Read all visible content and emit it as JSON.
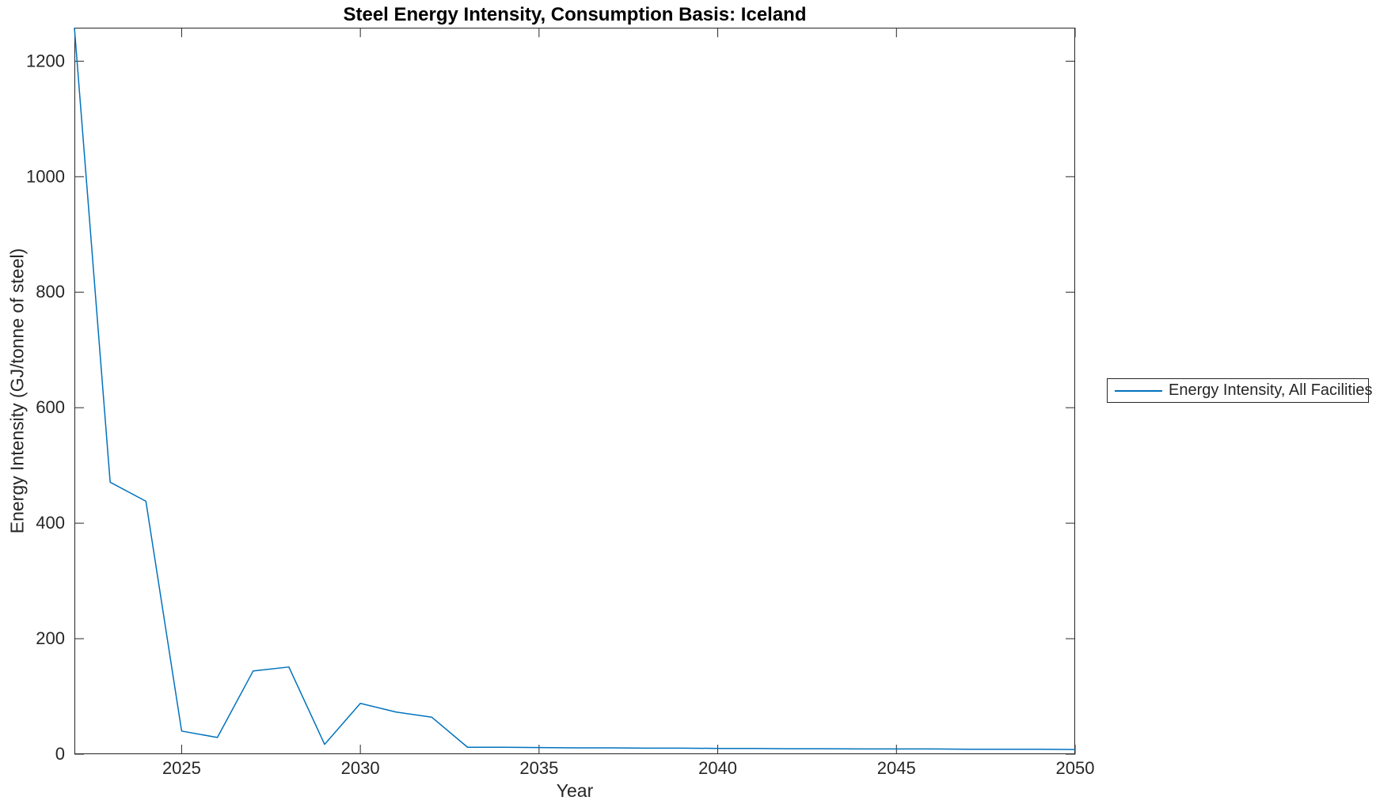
{
  "title": "Steel Energy Intensity, Consumption Basis: Iceland",
  "axes": {
    "xlabel": "Year",
    "ylabel": "Energy Intensity (GJ/tonne of steel)"
  },
  "legend": {
    "entries": [
      {
        "label": "Energy Intensity, All Facilities",
        "color": "#0072BD"
      }
    ]
  },
  "colors": {
    "line": "#0072BD",
    "axis": "#262626",
    "tick_text": "#262626",
    "title_text": "#000000",
    "background": "#ffffff"
  },
  "chart_data": {
    "type": "line",
    "title": "Steel Energy Intensity, Consumption Basis: Iceland",
    "xlabel": "Year",
    "ylabel": "Energy Intensity (GJ/tonne of steel)",
    "x": [
      2022,
      2023,
      2024,
      2025,
      2026,
      2027,
      2028,
      2029,
      2030,
      2031,
      2032,
      2033,
      2034,
      2035,
      2036,
      2037,
      2038,
      2039,
      2040,
      2041,
      2042,
      2043,
      2044,
      2045,
      2046,
      2047,
      2048,
      2049,
      2050
    ],
    "series": [
      {
        "name": "Energy Intensity, All Facilities",
        "color": "#0072BD",
        "values": [
          1258,
          471,
          438,
          40,
          29,
          144,
          151,
          17,
          88,
          73,
          64,
          12,
          12,
          11.5,
          11,
          11,
          10.5,
          10.5,
          10,
          10,
          9.5,
          9.5,
          9,
          9,
          9,
          8.5,
          8.5,
          8.5,
          8
        ]
      }
    ],
    "xlim": [
      2022,
      2050
    ],
    "ylim": [
      0,
      1258
    ],
    "xticks": [
      2025,
      2030,
      2035,
      2040,
      2045,
      2050
    ],
    "yticks": [
      0,
      200,
      400,
      600,
      800,
      1000,
      1200
    ],
    "grid": false,
    "legend_position": "outside-right",
    "box": true,
    "tick_direction": "in"
  }
}
